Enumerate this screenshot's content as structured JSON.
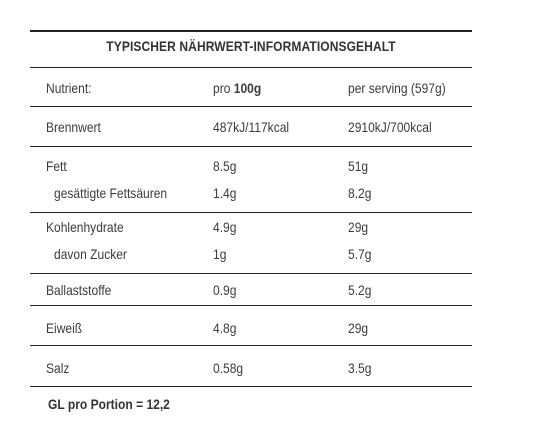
{
  "title": "TYPISCHER NÄHRWERT-INFORMATIONSGEHALT",
  "header": {
    "nutrient": "Nutrient:",
    "per100_prefix": "pro ",
    "per100_bold": "100g",
    "per_serving": "per serving (597g)"
  },
  "rows": [
    {
      "name": "Brennwert",
      "per100": "487kJ/117kcal",
      "serving": "2910kJ/700kcal"
    },
    {
      "name": "Fett",
      "per100": "8.5g",
      "serving": "51g"
    },
    {
      "name": "gesättigte Fettsäuren",
      "per100": "1.4g",
      "serving": "8.2g"
    },
    {
      "name": "Kohlenhydrate",
      "per100": "4.9g",
      "serving": "29g"
    },
    {
      "name": "davon Zucker",
      "per100": "1g",
      "serving": "5.7g"
    },
    {
      "name": "Ballaststoffe",
      "per100": "0.9g",
      "serving": "5.2g"
    },
    {
      "name": "Eiweiß",
      "per100": "4.8g",
      "serving": "29g"
    },
    {
      "name": "Salz",
      "per100": "0.58g",
      "serving": "3.5g"
    }
  ],
  "footer": "GL pro Portion = 12,2"
}
